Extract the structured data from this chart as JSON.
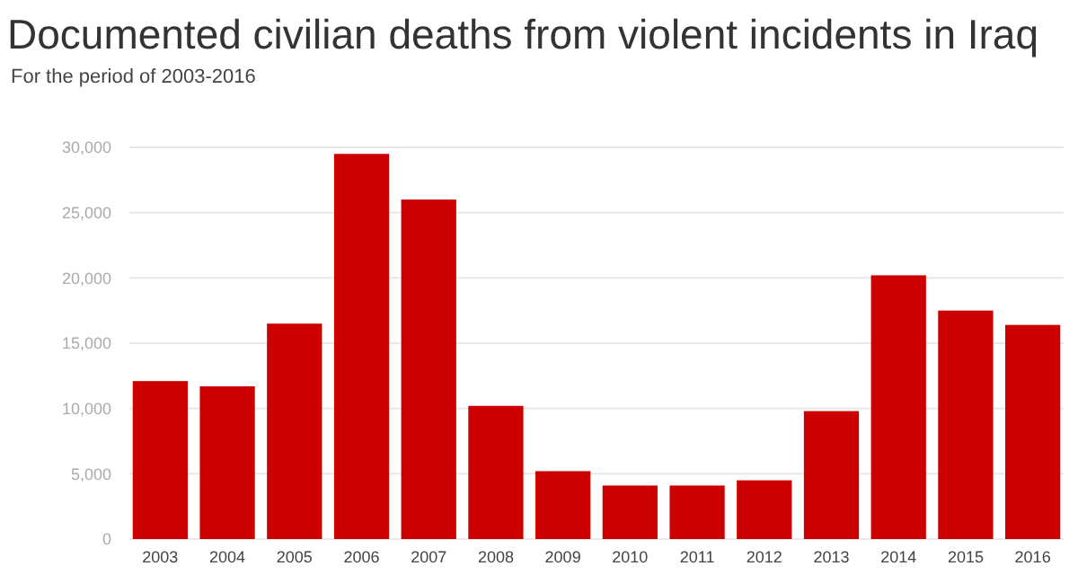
{
  "chart_data": {
    "type": "bar",
    "title": "Documented civilian deaths from violent incidents in Iraq",
    "subtitle": "For the period of 2003-2016",
    "categories": [
      "2003",
      "2004",
      "2005",
      "2006",
      "2007",
      "2008",
      "2009",
      "2010",
      "2011",
      "2012",
      "2013",
      "2014",
      "2015",
      "2016"
    ],
    "values": [
      12100,
      11700,
      16500,
      29500,
      26000,
      10200,
      5200,
      4100,
      4100,
      4500,
      9800,
      20200,
      17500,
      16400
    ],
    "color": "#cc0000",
    "ylim": [
      0,
      30000
    ],
    "yticks": [
      0,
      {
        "value": 5000,
        "label": "5,000"
      },
      {
        "value": 10000,
        "label": "10,000"
      },
      {
        "value": 15000,
        "label": "15,000"
      },
      {
        "value": 20000,
        "label": "20,000"
      },
      {
        "value": 25000,
        "label": "25,000"
      },
      {
        "value": 30000,
        "label": "30,000"
      }
    ],
    "grid": "y"
  }
}
